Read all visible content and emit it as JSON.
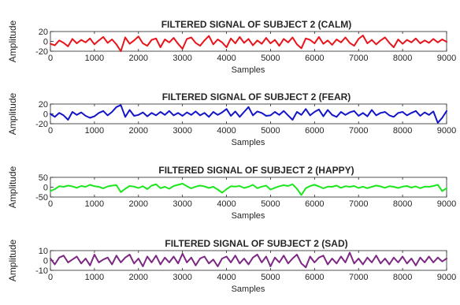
{
  "chart_data": [
    {
      "type": "line",
      "title": "FILTERED SIGNAL OF SUBJECT 2 (CALM)",
      "xlabel": "Samples",
      "ylabel": "Amplitude",
      "xlim": [
        0,
        9000
      ],
      "ylim": [
        -20,
        20
      ],
      "xticks": [
        "0",
        "1000",
        "2000",
        "3000",
        "4000",
        "5000",
        "6000",
        "7000",
        "8000",
        "9000"
      ],
      "yticks": [
        "20",
        "0",
        "-20"
      ],
      "ytick_values": [
        20,
        0,
        -20
      ],
      "color": "#e8141c",
      "grid": false,
      "x": [
        0,
        100,
        200,
        300,
        400,
        500,
        600,
        700,
        800,
        900,
        1000,
        1100,
        1200,
        1300,
        1400,
        1500,
        1600,
        1700,
        1800,
        1900,
        2000,
        2100,
        2200,
        2300,
        2400,
        2500,
        2600,
        2700,
        2800,
        2900,
        3000,
        3100,
        3200,
        3300,
        3400,
        3500,
        3600,
        3700,
        3800,
        3900,
        4000,
        4100,
        4200,
        4300,
        4400,
        4500,
        4600,
        4700,
        4800,
        4900,
        5000,
        5100,
        5200,
        5300,
        5400,
        5500,
        5600,
        5700,
        5800,
        5900,
        6000,
        6100,
        6200,
        6300,
        6400,
        6500,
        6600,
        6700,
        6800,
        6900,
        7000,
        7100,
        7200,
        7300,
        7400,
        7500,
        7600,
        7700,
        7800,
        7900,
        8000,
        8100,
        8200,
        8300,
        8400,
        8500,
        8600,
        8700,
        8800,
        8900,
        9000
      ],
      "y": [
        -5,
        -8,
        2,
        -3,
        -10,
        5,
        -4,
        3,
        -2,
        6,
        -6,
        2,
        9,
        -3,
        4,
        -6,
        -20,
        8,
        -5,
        2,
        10,
        -4,
        -9,
        3,
        6,
        -12,
        4,
        -2,
        7,
        -5,
        -15,
        5,
        8,
        -3,
        -9,
        2,
        11,
        -6,
        4,
        -2,
        -12,
        6,
        -4,
        9,
        -3,
        5,
        -8,
        2,
        -5,
        7,
        -4,
        3,
        -9,
        5,
        -2,
        8,
        -6,
        -14,
        6,
        3,
        -4,
        9,
        -5,
        2,
        -7,
        4,
        -2,
        8,
        -3,
        -9,
        5,
        12,
        -4,
        3,
        -6,
        2,
        8,
        -3,
        -12,
        4,
        -5,
        3,
        -2,
        6,
        -4,
        2,
        -3,
        5,
        -2,
        4,
        -1
      ]
    },
    {
      "type": "line",
      "title": "FILTERED SIGNAL OF SUBJECT 2 (FEAR)",
      "xlabel": "Samples",
      "ylabel": "Amplitude",
      "xlim": [
        0,
        9000
      ],
      "ylim": [
        -20,
        20
      ],
      "xticks": [
        "0",
        "1000",
        "2000",
        "3000",
        "4000",
        "5000",
        "6000",
        "7000",
        "8000",
        "9000"
      ],
      "yticks": [
        "20",
        "0",
        "-20"
      ],
      "ytick_values": [
        20,
        0,
        -20
      ],
      "color": "#1414c8",
      "grid": false,
      "x": [
        0,
        100,
        200,
        300,
        400,
        500,
        600,
        700,
        800,
        900,
        1000,
        1100,
        1200,
        1300,
        1400,
        1500,
        1600,
        1700,
        1800,
        1900,
        2000,
        2100,
        2200,
        2300,
        2400,
        2500,
        2600,
        2700,
        2800,
        2900,
        3000,
        3100,
        3200,
        3300,
        3400,
        3500,
        3600,
        3700,
        3800,
        3900,
        4000,
        4100,
        4200,
        4300,
        4400,
        4500,
        4600,
        4700,
        4800,
        4900,
        5000,
        5100,
        5200,
        5300,
        5400,
        5500,
        5600,
        5700,
        5800,
        5900,
        6000,
        6100,
        6200,
        6300,
        6400,
        6500,
        6600,
        6700,
        6800,
        6900,
        7000,
        7100,
        7200,
        7300,
        7400,
        7500,
        7600,
        7700,
        7800,
        7900,
        8000,
        8100,
        8200,
        8300,
        8400,
        8500,
        8600,
        8700,
        8800,
        8900,
        9000
      ],
      "y": [
        0,
        -6,
        2,
        -3,
        -12,
        4,
        -2,
        3,
        -4,
        -8,
        -5,
        2,
        6,
        -3,
        4,
        14,
        18,
        -6,
        8,
        -4,
        -2,
        3,
        -5,
        2,
        -3,
        4,
        -2,
        6,
        -3,
        2,
        -4,
        3,
        -2,
        5,
        -3,
        2,
        -6,
        4,
        -2,
        3,
        10,
        -4,
        5,
        -6,
        4,
        14,
        -3,
        5,
        2,
        -4,
        -3,
        4,
        -2,
        6,
        -3,
        -12,
        4,
        -2,
        10,
        -3,
        4,
        9,
        -5,
        8,
        -2,
        -6,
        4,
        -2,
        3,
        6,
        -4,
        2,
        -5,
        8,
        -3,
        2,
        4,
        -3,
        -6,
        2,
        4,
        -3,
        2,
        6,
        -4,
        3,
        -2,
        5,
        -18,
        -8,
        6
      ]
    },
    {
      "type": "line",
      "title": "FILTERED SIGNAL OF SUBJECT 2 (HAPPY)",
      "xlabel": "Samples",
      "ylabel": "Amplitude",
      "xlim": [
        0,
        9000
      ],
      "ylim": [
        -50,
        50
      ],
      "xticks": [
        "0",
        "1000",
        "2000",
        "3000",
        "4000",
        "5000",
        "6000",
        "7000",
        "8000",
        "9000"
      ],
      "yticks": [
        "50",
        "0",
        "-50"
      ],
      "ytick_values": [
        50,
        0,
        -50
      ],
      "color": "#1ee61e",
      "grid": false,
      "x": [
        0,
        100,
        200,
        300,
        400,
        500,
        600,
        700,
        800,
        900,
        1000,
        1100,
        1200,
        1300,
        1400,
        1500,
        1600,
        1700,
        1800,
        1900,
        2000,
        2100,
        2200,
        2300,
        2400,
        2500,
        2600,
        2700,
        2800,
        2900,
        3000,
        3100,
        3200,
        3300,
        3400,
        3500,
        3600,
        3700,
        3800,
        3900,
        4000,
        4100,
        4200,
        4300,
        4400,
        4500,
        4600,
        4700,
        4800,
        4900,
        5000,
        5100,
        5200,
        5300,
        5400,
        5500,
        5600,
        5700,
        5800,
        5900,
        6000,
        6100,
        6200,
        6300,
        6400,
        6500,
        6600,
        6700,
        6800,
        6900,
        7000,
        7100,
        7200,
        7300,
        7400,
        7500,
        7600,
        7700,
        7800,
        7900,
        8000,
        8100,
        8200,
        8300,
        8400,
        8500,
        8600,
        8700,
        8800,
        8900,
        9000
      ],
      "y": [
        -20,
        -10,
        5,
        2,
        8,
        4,
        -3,
        6,
        2,
        12,
        5,
        2,
        -6,
        4,
        8,
        10,
        -25,
        -8,
        6,
        3,
        -4,
        5,
        -10,
        8,
        15,
        -5,
        2,
        -8,
        6,
        12,
        18,
        5,
        -6,
        3,
        8,
        4,
        -4,
        2,
        -12,
        -28,
        -10,
        5,
        3,
        6,
        -4,
        2,
        12,
        -5,
        3,
        8,
        -12,
        -3,
        5,
        10,
        6,
        15,
        -8,
        -40,
        -5,
        6,
        12,
        4,
        -6,
        3,
        2,
        8,
        -3,
        5,
        2,
        6,
        -4,
        3,
        -5,
        2,
        8,
        4,
        -3,
        5,
        2,
        -4,
        3,
        6,
        -2,
        4,
        -5,
        3,
        2,
        6,
        12,
        -20,
        -5
      ]
    },
    {
      "type": "line",
      "title": "FILTERED SIGNAL OF SUBJECT 2 (SAD)",
      "xlabel": "Samples",
      "ylabel": "Amplitude",
      "xlim": [
        0,
        9000
      ],
      "ylim": [
        -10,
        10
      ],
      "xticks": [
        "0",
        "1000",
        "2000",
        "3000",
        "4000",
        "5000",
        "6000",
        "7000",
        "8000",
        "9000"
      ],
      "yticks": [
        "10",
        "0",
        "-10"
      ],
      "ytick_values": [
        10,
        0,
        -10
      ],
      "color": "#7d2882",
      "grid": false,
      "x": [
        0,
        100,
        200,
        300,
        400,
        500,
        600,
        700,
        800,
        900,
        1000,
        1100,
        1200,
        1300,
        1400,
        1500,
        1600,
        1700,
        1800,
        1900,
        2000,
        2100,
        2200,
        2300,
        2400,
        2500,
        2600,
        2700,
        2800,
        2900,
        3000,
        3100,
        3200,
        3300,
        3400,
        3500,
        3600,
        3700,
        3800,
        3900,
        4000,
        4100,
        4200,
        4300,
        4400,
        4500,
        4600,
        4700,
        4800,
        4900,
        5000,
        5100,
        5200,
        5300,
        5400,
        5500,
        5600,
        5700,
        5800,
        5900,
        6000,
        6100,
        6200,
        6300,
        6400,
        6500,
        6600,
        6700,
        6800,
        6900,
        7000,
        7100,
        7200,
        7300,
        7400,
        7500,
        7600,
        7700,
        7800,
        7900,
        8000,
        8100,
        8200,
        8300,
        8400,
        8500,
        8600,
        8700,
        8800,
        8900,
        9000
      ],
      "y": [
        2,
        -4,
        3,
        5,
        -2,
        1,
        4,
        -3,
        2,
        -5,
        6,
        -2,
        1,
        3,
        -4,
        5,
        -2,
        3,
        6,
        -3,
        2,
        -6,
        4,
        -2,
        5,
        -4,
        3,
        -2,
        4,
        -3,
        7,
        -2,
        3,
        -5,
        2,
        4,
        -3,
        1,
        -6,
        2,
        4,
        -2,
        5,
        -3,
        2,
        -4,
        3,
        6,
        -2,
        4,
        -6,
        3,
        -2,
        5,
        -3,
        2,
        6,
        -3,
        -7,
        4,
        -2,
        3,
        5,
        -4,
        2,
        -3,
        4,
        -2,
        8,
        -3,
        2,
        -4,
        3,
        -2,
        5,
        -3,
        2,
        -4,
        3,
        -2,
        4,
        -3,
        2,
        -5,
        3,
        -2,
        4,
        -2,
        3,
        -1,
        2
      ]
    }
  ]
}
